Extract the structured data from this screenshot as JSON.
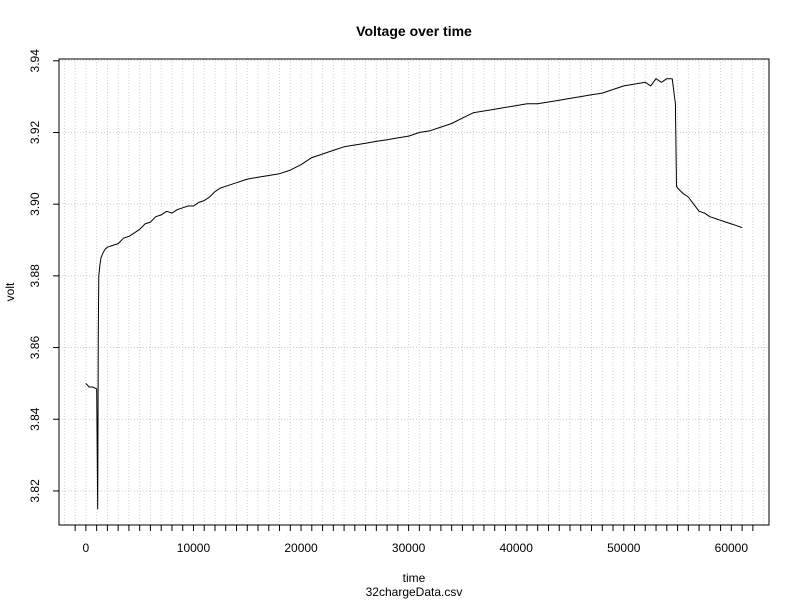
{
  "chart_data": {
    "type": "line",
    "title": "Voltage over time",
    "xlabel": "time",
    "ylabel": "volt",
    "subtitle": "32chargeData.csv",
    "xlim": [
      -2500,
      63500
    ],
    "ylim": [
      3.8105,
      3.9405
    ],
    "x_ticks": [
      0,
      10000,
      20000,
      30000,
      40000,
      50000,
      60000
    ],
    "x_tick_labels": [
      "0",
      "10000",
      "20000",
      "30000",
      "40000",
      "50000",
      "60000"
    ],
    "y_ticks": [
      3.82,
      3.84,
      3.86,
      3.88,
      3.9,
      3.92,
      3.94
    ],
    "y_tick_labels": [
      "3.82",
      "3.84",
      "3.86",
      "3.88",
      "3.90",
      "3.92",
      "3.94"
    ],
    "grid": true,
    "line_color": "#000000",
    "grid_color": "#cccccc",
    "series": [
      {
        "x": [
          0,
          300,
          600,
          1000,
          1100,
          1150,
          1200,
          1300,
          1400,
          1600,
          1800,
          2000,
          2500,
          3000,
          3500,
          4000,
          4500,
          5000,
          5500,
          6000,
          6500,
          7000,
          7500,
          8000,
          8500,
          9000,
          9500,
          10000,
          10500,
          11000,
          11500,
          12000,
          12500,
          13000,
          14000,
          15000,
          16000,
          17000,
          18000,
          19000,
          20000,
          21000,
          22000,
          23000,
          24000,
          25000,
          26000,
          27000,
          28000,
          29000,
          30000,
          31000,
          32000,
          33000,
          34000,
          35000,
          36000,
          37000,
          38000,
          39000,
          40000,
          41000,
          42000,
          43000,
          44000,
          45000,
          46000,
          47000,
          48000,
          49000,
          50000,
          51000,
          52000,
          52500,
          53000,
          53500,
          54000,
          54500,
          54800,
          54900,
          55000,
          55500,
          56000,
          56500,
          57000,
          57500,
          58000,
          58500,
          59000,
          59500,
          60000,
          60500,
          61000
        ],
        "y": [
          3.85,
          3.849,
          3.849,
          3.8485,
          3.815,
          3.865,
          3.88,
          3.883,
          3.885,
          3.8865,
          3.8875,
          3.888,
          3.8885,
          3.889,
          3.8905,
          3.891,
          3.892,
          3.893,
          3.8945,
          3.895,
          3.8965,
          3.897,
          3.898,
          3.8975,
          3.8985,
          3.899,
          3.8995,
          3.8995,
          3.9005,
          3.901,
          3.902,
          3.9035,
          3.9045,
          3.905,
          3.906,
          3.907,
          3.9075,
          3.908,
          3.9085,
          3.9095,
          3.911,
          3.913,
          3.914,
          3.915,
          3.916,
          3.9165,
          3.917,
          3.9175,
          3.918,
          3.9185,
          3.919,
          3.92,
          3.9205,
          3.9215,
          3.9225,
          3.924,
          3.9255,
          3.926,
          3.9265,
          3.927,
          3.9275,
          3.928,
          3.928,
          3.9285,
          3.929,
          3.9295,
          3.93,
          3.9305,
          3.931,
          3.932,
          3.933,
          3.9335,
          3.934,
          3.933,
          3.935,
          3.934,
          3.935,
          3.935,
          3.928,
          3.905,
          3.9045,
          3.903,
          3.902,
          3.9,
          3.898,
          3.8975,
          3.8965,
          3.896,
          3.8955,
          3.895,
          3.8945,
          3.894,
          3.8935
        ]
      }
    ]
  }
}
